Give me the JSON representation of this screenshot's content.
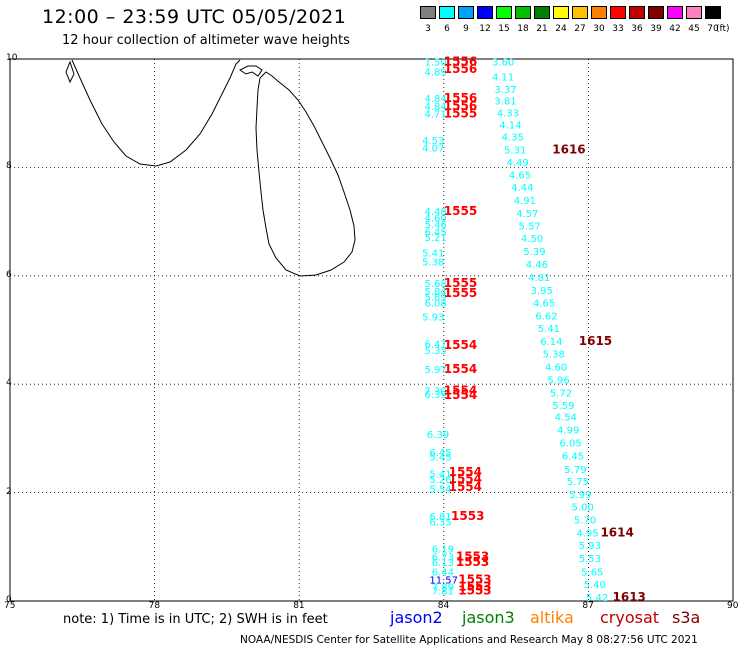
{
  "header": {
    "title": "12:00 – 23:59 UTC 05/05/2021",
    "subtitle": "12 hour collection of altimeter wave heights"
  },
  "colorbar": {
    "swatches": [
      {
        "label": "3",
        "color": "#808080"
      },
      {
        "label": "6",
        "color": "#00ffff"
      },
      {
        "label": "9",
        "color": "#00a0ff"
      },
      {
        "label": "12",
        "color": "#0000ff"
      },
      {
        "label": "15",
        "color": "#00ff00"
      },
      {
        "label": "18",
        "color": "#00c000"
      },
      {
        "label": "21",
        "color": "#008000"
      },
      {
        "label": "24",
        "color": "#ffff00"
      },
      {
        "label": "27",
        "color": "#ffc000"
      },
      {
        "label": "30",
        "color": "#ff8000"
      },
      {
        "label": "33",
        "color": "#ff0000"
      },
      {
        "label": "36",
        "color": "#c00000"
      },
      {
        "label": "39",
        "color": "#800000"
      },
      {
        "label": "42",
        "color": "#ff00ff"
      },
      {
        "label": "45",
        "color": "#ff80c0"
      },
      {
        "label": "70",
        "color": "#000000"
      }
    ],
    "unit": "(ft)"
  },
  "axes": {
    "y_ticks": [
      "0",
      "2",
      "4",
      "6",
      "8",
      "10"
    ],
    "x_ticks": [
      "75",
      "78",
      "81",
      "84",
      "87",
      "90"
    ]
  },
  "note": "note: 1) Time is in UTC; 2) SWH is in feet",
  "satellites": [
    {
      "name": "jason2",
      "color": "#0000ff"
    },
    {
      "name": "jason3",
      "color": "#008000"
    },
    {
      "name": "altika",
      "color": "#ff8000"
    },
    {
      "name": "cryosat",
      "color": "#c00000"
    },
    {
      "name": "s3a",
      "color": "#800000"
    }
  ],
  "credit": "NOAA/NESDIS Center for Satellite Applications and Research   May  8 08:27:56 UTC 2021",
  "observations": [
    {
      "text": "1.50",
      "lon": 83.6,
      "lat": 9.95,
      "color": "#00ffff"
    },
    {
      "text": "4.89",
      "lon": 83.6,
      "lat": 9.77,
      "color": "#00ffff"
    },
    {
      "text": "1556",
      "lon": 84.0,
      "lat": 9.95,
      "color": "#ff0000",
      "pass": true
    },
    {
      "text": "1556",
      "lon": 84.0,
      "lat": 9.82,
      "color": "#ff0000",
      "pass": true
    },
    {
      "text": "3.60",
      "lon": 85.0,
      "lat": 9.95,
      "color": "#00ffff"
    },
    {
      "text": "4.11",
      "lon": 85.0,
      "lat": 9.68,
      "color": "#00ffff"
    },
    {
      "text": "3.37",
      "lon": 85.05,
      "lat": 9.45,
      "color": "#00ffff"
    },
    {
      "text": "4.84",
      "lon": 83.6,
      "lat": 9.28,
      "color": "#00ffff"
    },
    {
      "text": "4.84",
      "lon": 83.6,
      "lat": 9.13,
      "color": "#00ffff"
    },
    {
      "text": "4.71",
      "lon": 83.6,
      "lat": 8.99,
      "color": "#00ffff"
    },
    {
      "text": "1556",
      "lon": 84.0,
      "lat": 9.28,
      "color": "#ff0000",
      "pass": true
    },
    {
      "text": "1556",
      "lon": 84.0,
      "lat": 9.13,
      "color": "#ff0000",
      "pass": true
    },
    {
      "text": "1555",
      "lon": 84.0,
      "lat": 8.99,
      "color": "#ff0000",
      "pass": true
    },
    {
      "text": "3.81",
      "lon": 85.05,
      "lat": 9.23,
      "color": "#00ffff"
    },
    {
      "text": "4.33",
      "lon": 85.1,
      "lat": 9.01,
      "color": "#00ffff"
    },
    {
      "text": "4.14",
      "lon": 85.15,
      "lat": 8.79,
      "color": "#00ffff"
    },
    {
      "text": "4.53",
      "lon": 83.55,
      "lat": 8.51,
      "color": "#00ffff"
    },
    {
      "text": "4.07",
      "lon": 83.55,
      "lat": 8.37,
      "color": "#00ffff"
    },
    {
      "text": "4.35",
      "lon": 85.2,
      "lat": 8.57,
      "color": "#00ffff"
    },
    {
      "text": "5.31",
      "lon": 85.25,
      "lat": 8.33,
      "color": "#00ffff"
    },
    {
      "text": "1616",
      "lon": 86.25,
      "lat": 8.33,
      "color": "#800000",
      "pass": true
    },
    {
      "text": "4.49",
      "lon": 85.3,
      "lat": 8.1,
      "color": "#00ffff"
    },
    {
      "text": "4.65",
      "lon": 85.35,
      "lat": 7.87,
      "color": "#00ffff"
    },
    {
      "text": "4.44",
      "lon": 85.4,
      "lat": 7.64,
      "color": "#00ffff"
    },
    {
      "text": "4.91",
      "lon": 85.45,
      "lat": 7.4,
      "color": "#00ffff"
    },
    {
      "text": "4.48",
      "lon": 83.6,
      "lat": 7.2,
      "color": "#00ffff"
    },
    {
      "text": "4.60",
      "lon": 83.6,
      "lat": 7.08,
      "color": "#00ffff"
    },
    {
      "text": "5.46",
      "lon": 83.6,
      "lat": 6.96,
      "color": "#00ffff"
    },
    {
      "text": "1555",
      "lon": 84.0,
      "lat": 7.2,
      "color": "#ff0000",
      "pass": true
    },
    {
      "text": "4.57",
      "lon": 85.5,
      "lat": 7.16,
      "color": "#00ffff"
    },
    {
      "text": "6.45",
      "lon": 83.6,
      "lat": 6.82,
      "color": "#00ffff"
    },
    {
      "text": "5.21",
      "lon": 83.6,
      "lat": 6.72,
      "color": "#00ffff"
    },
    {
      "text": "5.57",
      "lon": 85.55,
      "lat": 6.93,
      "color": "#00ffff"
    },
    {
      "text": "4.50",
      "lon": 85.6,
      "lat": 6.7,
      "color": "#00ffff"
    },
    {
      "text": "5.41",
      "lon": 83.55,
      "lat": 6.43,
      "color": "#00ffff"
    },
    {
      "text": "5.38",
      "lon": 83.55,
      "lat": 6.26,
      "color": "#00ffff"
    },
    {
      "text": "5.39",
      "lon": 85.65,
      "lat": 6.46,
      "color": "#00ffff"
    },
    {
      "text": "4.46",
      "lon": 85.7,
      "lat": 6.22,
      "color": "#00ffff"
    },
    {
      "text": "4.81",
      "lon": 85.75,
      "lat": 5.98,
      "color": "#00ffff"
    },
    {
      "text": "5.68",
      "lon": 83.6,
      "lat": 5.87,
      "color": "#00ffff"
    },
    {
      "text": "5.84",
      "lon": 83.6,
      "lat": 5.72,
      "color": "#00ffff"
    },
    {
      "text": "5.89",
      "lon": 83.6,
      "lat": 5.62,
      "color": "#00ffff"
    },
    {
      "text": "6.08",
      "lon": 83.6,
      "lat": 5.51,
      "color": "#00ffff"
    },
    {
      "text": "1555",
      "lon": 84.0,
      "lat": 5.87,
      "color": "#ff0000",
      "pass": true
    },
    {
      "text": "1555",
      "lon": 84.0,
      "lat": 5.68,
      "color": "#ff0000",
      "pass": true
    },
    {
      "text": "3.95",
      "lon": 85.8,
      "lat": 5.74,
      "color": "#00ffff"
    },
    {
      "text": "4.65",
      "lon": 85.85,
      "lat": 5.51,
      "color": "#00ffff"
    },
    {
      "text": "5.93",
      "lon": 83.55,
      "lat": 5.25,
      "color": "#00ffff"
    },
    {
      "text": "6.62",
      "lon": 85.9,
      "lat": 5.27,
      "color": "#00ffff"
    },
    {
      "text": "5.41",
      "lon": 85.95,
      "lat": 5.04,
      "color": "#00ffff"
    },
    {
      "text": "6.47",
      "lon": 83.6,
      "lat": 4.75,
      "color": "#00ffff"
    },
    {
      "text": "5.35",
      "lon": 83.6,
      "lat": 4.63,
      "color": "#00ffff"
    },
    {
      "text": "1554",
      "lon": 84.0,
      "lat": 4.72,
      "color": "#ff0000",
      "pass": true
    },
    {
      "text": "6.14",
      "lon": 86.0,
      "lat": 4.8,
      "color": "#00ffff"
    },
    {
      "text": "1615",
      "lon": 86.8,
      "lat": 4.8,
      "color": "#800000",
      "pass": true
    },
    {
      "text": "5.38",
      "lon": 86.05,
      "lat": 4.57,
      "color": "#00ffff"
    },
    {
      "text": "5.97",
      "lon": 83.6,
      "lat": 4.28,
      "color": "#00ffff"
    },
    {
      "text": "1554",
      "lon": 84.0,
      "lat": 4.28,
      "color": "#ff0000",
      "pass": true
    },
    {
      "text": "4.60",
      "lon": 86.1,
      "lat": 4.33,
      "color": "#00ffff"
    },
    {
      "text": "5.96",
      "lon": 86.15,
      "lat": 4.09,
      "color": "#00ffff"
    },
    {
      "text": "7.30",
      "lon": 83.6,
      "lat": 3.88,
      "color": "#00ffff"
    },
    {
      "text": "6.39",
      "lon": 83.6,
      "lat": 3.82,
      "color": "#00ffff"
    },
    {
      "text": "1554",
      "lon": 84.0,
      "lat": 3.88,
      "color": "#ff0000",
      "pass": true
    },
    {
      "text": "1554",
      "lon": 84.0,
      "lat": 3.8,
      "color": "#ff0000",
      "pass": true
    },
    {
      "text": "5.72",
      "lon": 86.2,
      "lat": 3.85,
      "color": "#00ffff"
    },
    {
      "text": "5.59",
      "lon": 86.25,
      "lat": 3.62,
      "color": "#00ffff"
    },
    {
      "text": "4.54",
      "lon": 86.3,
      "lat": 3.4,
      "color": "#00ffff"
    },
    {
      "text": "6.39",
      "lon": 83.65,
      "lat": 3.08,
      "color": "#00ffff"
    },
    {
      "text": "4.99",
      "lon": 86.35,
      "lat": 3.16,
      "color": "#00ffff"
    },
    {
      "text": "6.05",
      "lon": 86.4,
      "lat": 2.92,
      "color": "#00ffff"
    },
    {
      "text": "6.45",
      "lon": 83.7,
      "lat": 2.75,
      "color": "#00ffff"
    },
    {
      "text": "5.45",
      "lon": 83.7,
      "lat": 2.67,
      "color": "#00ffff"
    },
    {
      "text": "6.45",
      "lon": 86.45,
      "lat": 2.68,
      "color": "#00ffff"
    },
    {
      "text": "5.41",
      "lon": 83.7,
      "lat": 2.35,
      "color": "#00ffff"
    },
    {
      "text": "5.26",
      "lon": 83.7,
      "lat": 2.25,
      "color": "#00ffff"
    },
    {
      "text": "5.54",
      "lon": 83.7,
      "lat": 2.08,
      "color": "#00ffff"
    },
    {
      "text": "1554",
      "lon": 84.1,
      "lat": 2.38,
      "color": "#ff0000",
      "pass": true
    },
    {
      "text": "1554",
      "lon": 84.1,
      "lat": 2.25,
      "color": "#ff0000",
      "pass": true
    },
    {
      "text": "1554",
      "lon": 84.1,
      "lat": 2.1,
      "color": "#ff0000",
      "pass": true
    },
    {
      "text": "5.79",
      "lon": 86.5,
      "lat": 2.44,
      "color": "#00ffff"
    },
    {
      "text": "5.75",
      "lon": 86.55,
      "lat": 2.21,
      "color": "#00ffff"
    },
    {
      "text": "5.99",
      "lon": 86.6,
      "lat": 1.97,
      "color": "#00ffff"
    },
    {
      "text": "5.00",
      "lon": 86.65,
      "lat": 1.74,
      "color": "#00ffff"
    },
    {
      "text": "6.81",
      "lon": 83.7,
      "lat": 1.57,
      "color": "#00ffff"
    },
    {
      "text": "6.35",
      "lon": 83.7,
      "lat": 1.47,
      "color": "#00ffff"
    },
    {
      "text": "1553",
      "lon": 84.15,
      "lat": 1.57,
      "color": "#ff0000",
      "pass": true
    },
    {
      "text": "5.70",
      "lon": 86.7,
      "lat": 1.5,
      "color": "#00ffff"
    },
    {
      "text": "4.95",
      "lon": 86.75,
      "lat": 1.26,
      "color": "#00ffff"
    },
    {
      "text": "1614",
      "lon": 87.25,
      "lat": 1.26,
      "color": "#800000",
      "pass": true
    },
    {
      "text": "6.19",
      "lon": 83.75,
      "lat": 0.97,
      "color": "#00ffff"
    },
    {
      "text": "5.93",
      "lon": 86.8,
      "lat": 1.03,
      "color": "#00ffff"
    },
    {
      "text": "6.73",
      "lon": 83.75,
      "lat": 0.82,
      "color": "#00ffff"
    },
    {
      "text": "6.13",
      "lon": 83.75,
      "lat": 0.72,
      "color": "#00ffff"
    },
    {
      "text": "1553",
      "lon": 84.25,
      "lat": 0.82,
      "color": "#ff0000",
      "pass": true
    },
    {
      "text": "1553",
      "lon": 84.25,
      "lat": 0.72,
      "color": "#ff0000",
      "pass": true
    },
    {
      "text": "5.53",
      "lon": 86.8,
      "lat": 0.79,
      "color": "#00ffff"
    },
    {
      "text": "6.44",
      "lon": 83.75,
      "lat": 0.54,
      "color": "#00ffff"
    },
    {
      "text": "11.57",
      "lon": 83.7,
      "lat": 0.4,
      "color": "#0000ff"
    },
    {
      "text": "7.89",
      "lon": 83.75,
      "lat": 0.27,
      "color": "#00ffff"
    },
    {
      "text": "7.81",
      "lon": 83.75,
      "lat": 0.19,
      "color": "#00ffff"
    },
    {
      "text": "1553",
      "lon": 84.3,
      "lat": 0.4,
      "color": "#ff0000",
      "pass": true
    },
    {
      "text": "1553",
      "lon": 84.3,
      "lat": 0.27,
      "color": "#ff0000",
      "pass": true
    },
    {
      "text": "1553",
      "lon": 84.3,
      "lat": 0.19,
      "color": "#ff0000",
      "pass": true
    },
    {
      "text": "5.65",
      "lon": 86.85,
      "lat": 0.54,
      "color": "#00ffff"
    },
    {
      "text": "5.40",
      "lon": 86.9,
      "lat": 0.31,
      "color": "#00ffff"
    },
    {
      "text": "5.42",
      "lon": 86.95,
      "lat": 0.07,
      "color": "#00ffff"
    },
    {
      "text": "1613",
      "lon": 87.5,
      "lat": 0.07,
      "color": "#800000",
      "pass": true
    }
  ]
}
